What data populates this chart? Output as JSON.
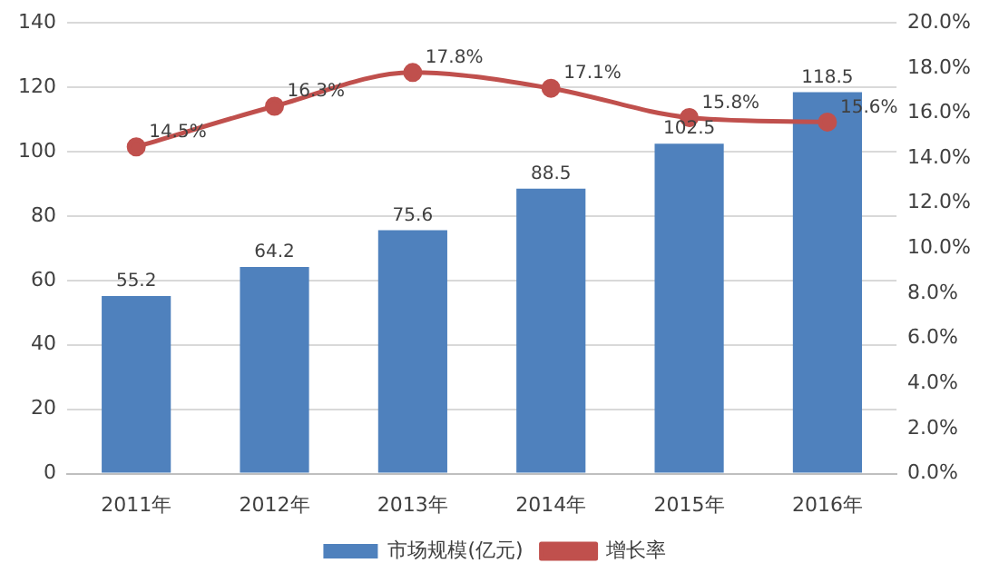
{
  "chart_data": {
    "type": "bar",
    "categories": [
      "2011年",
      "2012年",
      "2013年",
      "2014年",
      "2015年",
      "2016年"
    ],
    "series": [
      {
        "name": "市场规模(亿元)",
        "color": "#4f81bd",
        "values": [
          55.2,
          64.2,
          75.6,
          88.5,
          102.5,
          118.5
        ],
        "value_labels": [
          "55.2",
          "64.2",
          "75.6",
          "88.5",
          "102.5",
          "118.5"
        ]
      },
      {
        "name": "增长率",
        "type": "line",
        "axis": "y2",
        "color": "#c0504d",
        "values": [
          14.5,
          16.3,
          17.8,
          17.1,
          15.8,
          15.6
        ],
        "value_labels": [
          "14.5%",
          "16.3%",
          "17.8%",
          "17.1%",
          "15.8%",
          "15.6%"
        ]
      }
    ],
    "ylim": [
      0,
      140
    ],
    "yticks": [
      0,
      20,
      40,
      60,
      80,
      100,
      120,
      140
    ],
    "y2lim": [
      0,
      20
    ],
    "y2ticks": [
      {
        "value": 0,
        "label": "0.0%"
      },
      {
        "value": 2,
        "label": "2.0%"
      },
      {
        "value": 4,
        "label": "4.0%"
      },
      {
        "value": 6,
        "label": "6.0%"
      },
      {
        "value": 8,
        "label": "8.0%"
      },
      {
        "value": 10,
        "label": "10.0%"
      },
      {
        "value": 12,
        "label": "12.0%"
      },
      {
        "value": 14,
        "label": "14.0%"
      },
      {
        "value": 16,
        "label": "16.0%"
      },
      {
        "value": 18,
        "label": "18.0%"
      },
      {
        "value": 20,
        "label": "20.0%"
      }
    ],
    "grid": "y",
    "legend": "bottom",
    "marker": "circle"
  }
}
